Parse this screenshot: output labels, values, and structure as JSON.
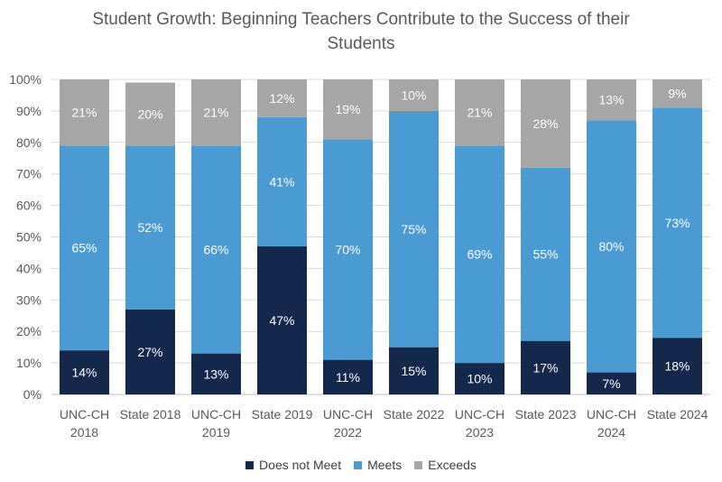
{
  "chart_data": {
    "type": "bar",
    "stacked": true,
    "title": "Student Growth: Beginning Teachers Contribute to the Success of their Students",
    "title_lines": [
      "Student Growth: Beginning Teachers Contribute to the Success of their",
      "Students"
    ],
    "categories": [
      [
        "UNC-CH",
        "2018"
      ],
      [
        "State 2018"
      ],
      [
        "UNC-CH",
        "2019"
      ],
      [
        "State 2019"
      ],
      [
        "UNC-CH",
        "2022"
      ],
      [
        "State 2022"
      ],
      [
        "UNC-CH",
        "2023"
      ],
      [
        "State 2023"
      ],
      [
        "UNC-CH",
        "2024"
      ],
      [
        "State 2024"
      ]
    ],
    "series": [
      {
        "name": "Does not Meet",
        "color": "#14284b",
        "values": [
          14,
          27,
          13,
          47,
          11,
          15,
          10,
          17,
          7,
          18
        ]
      },
      {
        "name": "Meets",
        "color": "#4a9bd4",
        "values": [
          65,
          52,
          66,
          41,
          70,
          75,
          69,
          55,
          80,
          73
        ]
      },
      {
        "name": "Exceeds",
        "color": "#a6a6a6",
        "values": [
          21,
          20,
          21,
          12,
          19,
          10,
          21,
          28,
          13,
          9
        ]
      }
    ],
    "ylim": [
      0,
      100
    ],
    "y_ticks": [
      "0%",
      "10%",
      "20%",
      "30%",
      "40%",
      "50%",
      "60%",
      "70%",
      "80%",
      "90%",
      "100%"
    ],
    "grid": true,
    "legend_position": "bottom",
    "xlabel": "",
    "ylabel": ""
  }
}
